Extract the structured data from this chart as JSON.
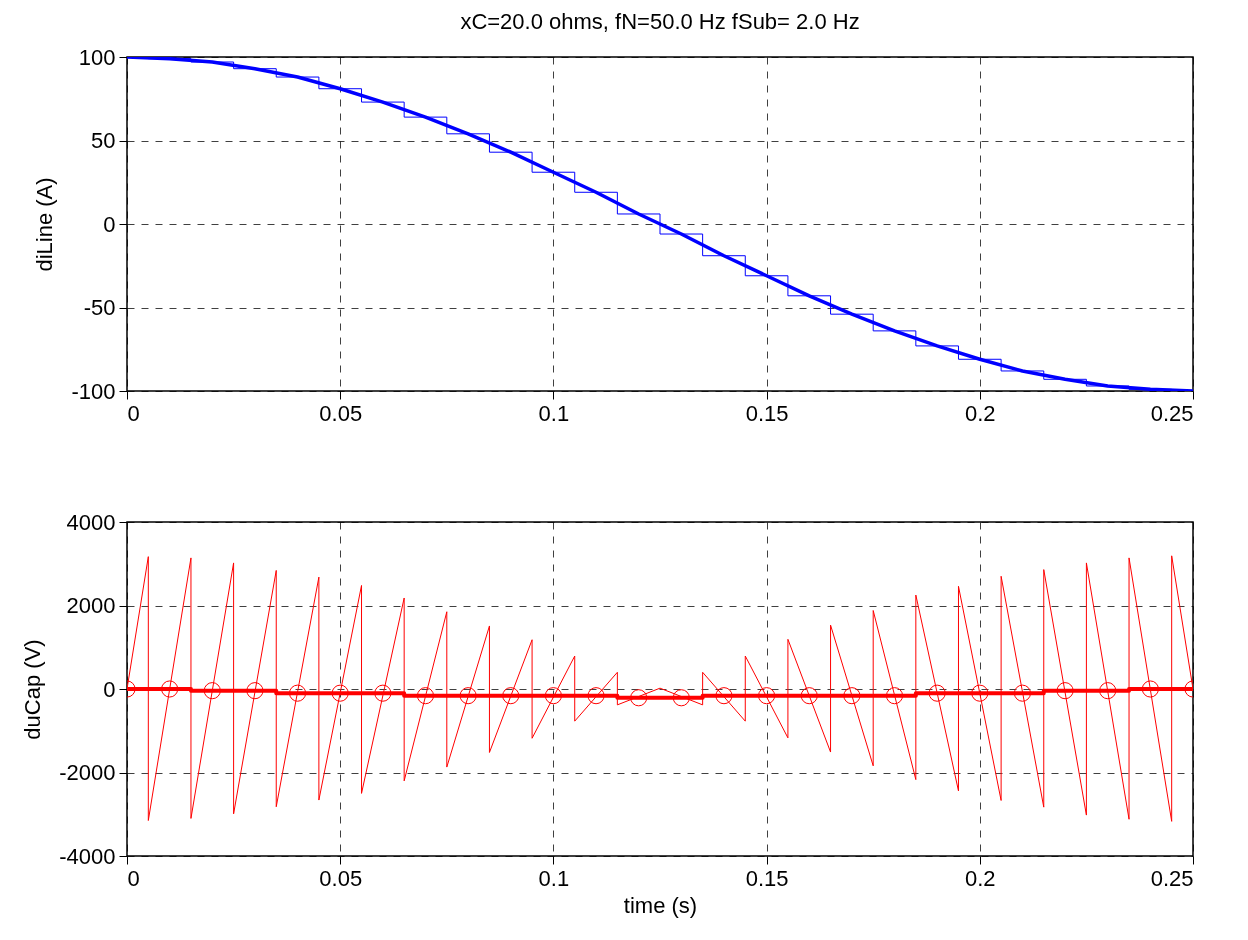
{
  "chart_data": [
    {
      "type": "line",
      "title": "xC=20.0 ohms, fN=50.0 Hz fSub= 2.0 Hz",
      "ylabel": "diLine (A)",
      "xlim": [
        0,
        0.25
      ],
      "xticks": [
        0,
        0.05,
        0.1,
        0.15,
        0.2,
        0.25
      ],
      "ylim": [
        -100,
        100
      ],
      "yticks": [
        -100,
        -50,
        0,
        50,
        100
      ],
      "grid": true,
      "x": [
        0,
        0.01,
        0.02,
        0.03,
        0.04,
        0.05,
        0.06,
        0.07,
        0.08,
        0.09,
        0.1,
        0.11,
        0.12,
        0.13,
        0.14,
        0.15,
        0.16,
        0.17,
        0.18,
        0.19,
        0.2,
        0.21,
        0.22,
        0.23,
        0.24,
        0.25
      ],
      "series": [
        {
          "color": "#0000ff",
          "values": [
            100,
            99,
            97,
            93,
            88,
            81,
            73,
            64,
            54,
            43,
            31,
            19,
            6,
            -6,
            -19,
            -31,
            -43,
            -54,
            -64,
            -73,
            -81,
            -88,
            -93,
            -97,
            -99,
            -100
          ]
        },
        {
          "type": "step",
          "color": "#0000ff",
          "values": [
            100,
            99,
            97,
            93,
            88,
            81,
            73,
            64,
            54,
            43,
            31,
            19,
            6,
            -6,
            -19,
            -31,
            -43,
            -54,
            -64,
            -73,
            -81,
            -88,
            -93,
            -97,
            -99,
            -100
          ]
        }
      ]
    },
    {
      "type": "line",
      "xlabel": "time (s)",
      "ylabel": "duCap (V)",
      "xlim": [
        0,
        0.25
      ],
      "xticks": [
        0,
        0.05,
        0.1,
        0.15,
        0.2,
        0.25
      ],
      "ylim": [
        -4000,
        4000
      ],
      "yticks": [
        -4000,
        -2000,
        0,
        2000,
        4000
      ],
      "grid": true,
      "x": [
        0,
        0.01,
        0.02,
        0.03,
        0.04,
        0.05,
        0.06,
        0.07,
        0.08,
        0.09,
        0.1,
        0.11,
        0.12,
        0.13,
        0.14,
        0.15,
        0.16,
        0.17,
        0.18,
        0.19,
        0.2,
        0.21,
        0.22,
        0.23,
        0.24,
        0.25
      ],
      "series": [
        {
          "color": "#ff0000",
          "marker": "none",
          "x": [
            0,
            0.005,
            0.005,
            0.015,
            0.015,
            0.025,
            0.025,
            0.035,
            0.035,
            0.045,
            0.045,
            0.055,
            0.055,
            0.065,
            0.065,
            0.075,
            0.075,
            0.085,
            0.085,
            0.095,
            0.095,
            0.105,
            0.105,
            0.115,
            0.115,
            0.125,
            0.135,
            0.135,
            0.145,
            0.145,
            0.155,
            0.155,
            0.165,
            0.165,
            0.175,
            0.175,
            0.185,
            0.185,
            0.195,
            0.195,
            0.205,
            0.205,
            0.215,
            0.215,
            0.225,
            0.225,
            0.235,
            0.235,
            0.245,
            0.245,
            0.25
          ],
          "values": [
            0,
            3170,
            -3150,
            3140,
            -3100,
            3020,
            -2990,
            2840,
            -2820,
            2680,
            -2660,
            2480,
            -2500,
            2180,
            -2200,
            1850,
            -1870,
            1510,
            -1520,
            1180,
            -1180,
            790,
            -770,
            400,
            -380,
            20,
            -380,
            400,
            -770,
            790,
            -1170,
            1190,
            -1510,
            1530,
            -1840,
            1880,
            -2170,
            2250,
            -2440,
            2460,
            -2670,
            2700,
            -2830,
            2860,
            -3020,
            3020,
            -3120,
            3140,
            -3170,
            3190,
            0
          ]
        },
        {
          "type": "step",
          "color": "#ff0000",
          "marker": "circle",
          "values": [
            0,
            0,
            -40,
            -40,
            -100,
            -100,
            -100,
            -160,
            -160,
            -160,
            -160,
            -160,
            -210,
            -210,
            -160,
            -160,
            -160,
            -160,
            -160,
            -100,
            -100,
            -100,
            -40,
            -40,
            0,
            0
          ]
        }
      ]
    }
  ]
}
